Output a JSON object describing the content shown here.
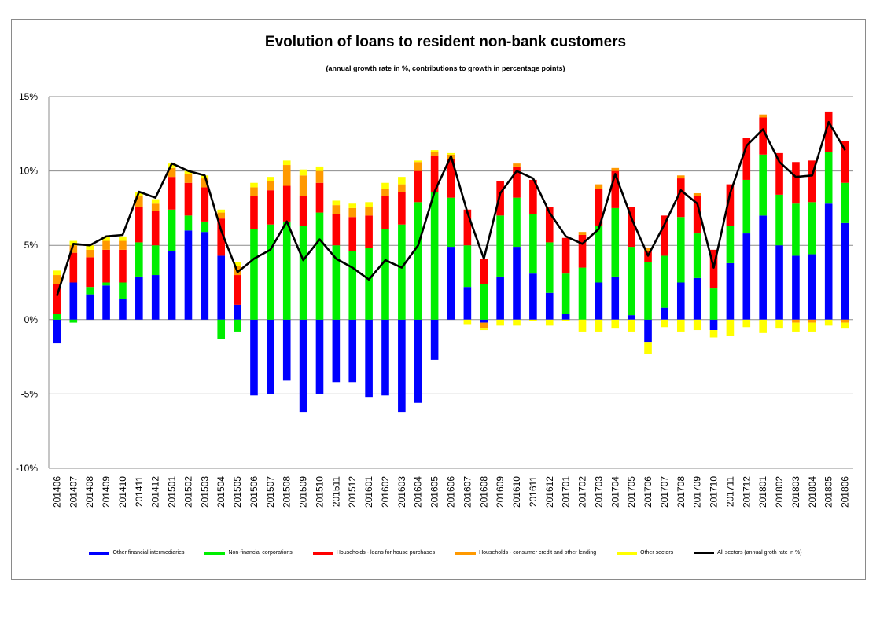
{
  "chart_data": {
    "type": "bar",
    "stacked": true,
    "title": "Evolution of loans to resident non-bank customers",
    "subtitle": "(annual growth rate in %, contributions to growth in percentage points)",
    "ylim": [
      -10,
      15
    ],
    "yticks": [
      -10,
      -5,
      0,
      5,
      10,
      15
    ],
    "ytick_labels": [
      "-10%",
      "-5%",
      "0%",
      "5%",
      "10%",
      "15%"
    ],
    "grid": true,
    "legend_position": "bottom",
    "categories": [
      "201406",
      "201407",
      "201408",
      "201409",
      "201410",
      "201411",
      "201412",
      "201501",
      "201502",
      "201503",
      "201504",
      "201505",
      "201506",
      "201507",
      "201508",
      "201509",
      "201510",
      "201511",
      "201512",
      "201601",
      "201602",
      "201603",
      "201604",
      "201605",
      "201606",
      "201607",
      "201608",
      "201609",
      "201610",
      "201611",
      "201612",
      "201701",
      "201702",
      "201703",
      "201704",
      "201705",
      "201706",
      "201707",
      "201708",
      "201709",
      "201710",
      "201711",
      "201712",
      "201801",
      "201802",
      "201803",
      "201804",
      "201805",
      "201806"
    ],
    "series": [
      {
        "name": "Other financial intermediaries",
        "color": "#0000ff",
        "values": [
          -1.6,
          2.5,
          1.7,
          2.3,
          1.4,
          2.9,
          3.0,
          4.6,
          6.0,
          5.9,
          4.3,
          1.0,
          -5.1,
          -5.0,
          -4.1,
          -6.2,
          -5.0,
          -4.2,
          -4.2,
          -5.2,
          -5.1,
          -6.2,
          -5.6,
          -2.7,
          4.9,
          2.2,
          -0.2,
          2.9,
          4.9,
          3.1,
          1.8,
          0.4,
          0.0,
          2.5,
          2.9,
          0.3,
          -1.5,
          0.8,
          2.5,
          2.8,
          -0.7,
          3.8,
          5.8,
          7.0,
          5.0,
          4.3,
          4.4,
          7.8,
          6.5
        ]
      },
      {
        "name": "Non-financial corporations",
        "color": "#00ee00",
        "values": [
          0.4,
          -0.2,
          0.5,
          0.2,
          1.1,
          2.3,
          2.0,
          2.8,
          1.0,
          0.7,
          -1.3,
          -0.8,
          6.1,
          6.4,
          6.6,
          6.3,
          7.2,
          5.0,
          4.6,
          4.8,
          6.1,
          6.4,
          7.9,
          8.6,
          3.3,
          2.8,
          2.4,
          4.1,
          3.3,
          4.0,
          3.4,
          2.7,
          3.5,
          3.8,
          4.6,
          4.6,
          3.9,
          3.5,
          4.4,
          3.0,
          2.1,
          2.5,
          3.6,
          4.1,
          3.4,
          3.5,
          3.5,
          3.5,
          2.7
        ]
      },
      {
        "name": "Households - loans for house purchases",
        "color": "#ff0000",
        "values": [
          2.0,
          2.0,
          2.0,
          2.2,
          2.2,
          2.4,
          2.3,
          2.2,
          2.2,
          2.3,
          2.5,
          2.0,
          2.2,
          2.3,
          2.4,
          2.0,
          2.0,
          2.1,
          2.3,
          2.2,
          2.2,
          2.2,
          2.1,
          2.4,
          2.6,
          2.4,
          1.7,
          2.3,
          2.1,
          2.3,
          2.4,
          2.4,
          2.2,
          2.5,
          2.5,
          2.7,
          0.7,
          2.7,
          2.6,
          2.5,
          2.6,
          2.8,
          2.8,
          2.5,
          2.8,
          2.8,
          2.8,
          2.7,
          2.8
        ]
      },
      {
        "name": "Households - consumer credit and other lending",
        "color": "#ff9900",
        "values": [
          0.6,
          0.5,
          0.5,
          0.6,
          0.6,
          0.7,
          0.5,
          0.6,
          0.6,
          0.6,
          0.4,
          0.6,
          0.6,
          0.6,
          1.4,
          1.4,
          0.8,
          0.6,
          0.6,
          0.6,
          0.5,
          0.5,
          0.6,
          0.3,
          0.3,
          0.0,
          -0.4,
          0.0,
          0.2,
          0.0,
          0.0,
          0.0,
          0.2,
          0.3,
          0.2,
          0.0,
          0.2,
          0.0,
          0.2,
          0.2,
          0.0,
          0.0,
          0.0,
          0.2,
          0.0,
          -0.2,
          -0.2,
          0.0,
          -0.2
        ]
      },
      {
        "name": "Other sectors",
        "color": "#ffff00",
        "values": [
          0.3,
          0.3,
          0.3,
          0.3,
          0.3,
          0.3,
          0.3,
          0.3,
          0.2,
          0.2,
          0.2,
          0.3,
          0.3,
          0.3,
          0.3,
          0.4,
          0.3,
          0.3,
          0.3,
          0.3,
          0.4,
          0.5,
          0.1,
          0.1,
          0.1,
          -0.3,
          -0.1,
          -0.4,
          -0.4,
          -0.1,
          -0.4,
          -0.1,
          -0.8,
          -0.8,
          -0.6,
          -0.8,
          -0.8,
          -0.5,
          -0.8,
          -0.7,
          -0.5,
          -1.1,
          -0.5,
          -0.9,
          -0.6,
          -0.6,
          -0.6,
          -0.4,
          -0.4
        ]
      }
    ],
    "line": {
      "name": "All sectors (annual groth rate in %)",
      "color": "#000000",
      "values": [
        1.6,
        5.1,
        5.0,
        5.6,
        5.7,
        8.6,
        8.2,
        10.5,
        10.0,
        9.7,
        6.0,
        3.2,
        4.1,
        4.7,
        6.6,
        4.0,
        5.4,
        4.1,
        3.5,
        2.7,
        4.0,
        3.5,
        5.0,
        8.6,
        11.0,
        7.2,
        4.1,
        8.5,
        10.0,
        9.5,
        7.2,
        5.6,
        5.1,
        6.1,
        9.8,
        6.8,
        4.3,
        6.4,
        8.7,
        7.8,
        3.5,
        8.5,
        11.7,
        12.8,
        10.6,
        9.6,
        9.7,
        13.3,
        11.4
      ]
    }
  }
}
